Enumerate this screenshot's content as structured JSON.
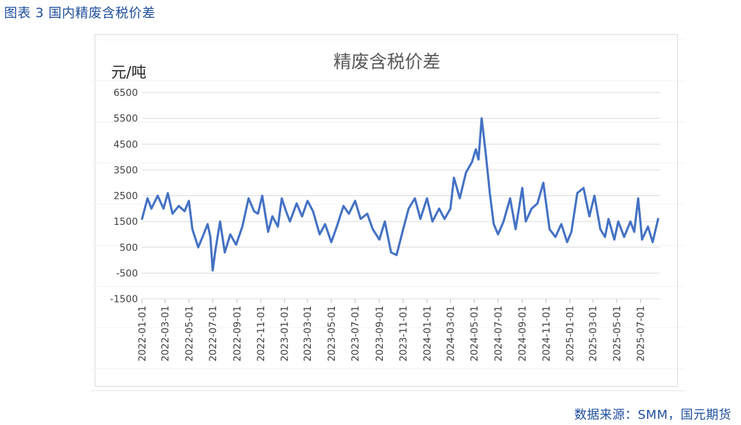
{
  "caption": "图表 3 国内精废含税价差",
  "source": "数据来源：SMM，国元期货",
  "chart_data": {
    "type": "line",
    "title": "精废含税价差",
    "ylabel": "元/吨",
    "xlabel": "",
    "ylim": [
      -1500,
      6500
    ],
    "yticks": [
      6500,
      5500,
      4500,
      3500,
      2500,
      1500,
      500,
      -500,
      -1500
    ],
    "ytick_labels": [
      "6500",
      "5500",
      "4500",
      "3500",
      "2500",
      "1500",
      "500",
      "-500",
      "-1500"
    ],
    "xlim": [
      "2022-01-01",
      "2025-08-20"
    ],
    "xtick_labels": [
      "2022-01-01",
      "2022-03-01",
      "2022-05-01",
      "2022-07-01",
      "2022-09-01",
      "2022-11-01",
      "2023-01-01",
      "2023-03-01",
      "2023-05-01",
      "2023-07-01",
      "2023-09-01",
      "2023-11-01",
      "2024-01-01",
      "2024-03-01",
      "2024-05-01",
      "2024-07-01",
      "2024-09-01",
      "2024-11-01",
      "2025-01-01",
      "2025-03-01",
      "2025-05-01",
      "2025-07-01"
    ],
    "grid": true,
    "line_color": "#4472c4",
    "series": [
      {
        "name": "",
        "x": [
          "2022-01-01",
          "2022-01-15",
          "2022-01-25",
          "2022-02-10",
          "2022-02-25",
          "2022-03-08",
          "2022-03-20",
          "2022-04-05",
          "2022-04-20",
          "2022-05-01",
          "2022-05-10",
          "2022-05-25",
          "2022-06-05",
          "2022-06-18",
          "2022-06-25",
          "2022-07-01",
          "2022-07-08",
          "2022-07-20",
          "2022-08-01",
          "2022-08-15",
          "2022-08-30",
          "2022-09-15",
          "2022-10-01",
          "2022-10-15",
          "2022-10-25",
          "2022-11-05",
          "2022-11-20",
          "2022-12-01",
          "2022-12-15",
          "2022-12-25",
          "2023-01-05",
          "2023-01-15",
          "2023-02-01",
          "2023-02-15",
          "2023-03-01",
          "2023-03-15",
          "2023-04-01",
          "2023-04-15",
          "2023-05-01",
          "2023-05-15",
          "2023-06-01",
          "2023-06-15",
          "2023-07-01",
          "2023-07-15",
          "2023-08-01",
          "2023-08-15",
          "2023-09-01",
          "2023-09-15",
          "2023-10-01",
          "2023-10-15",
          "2023-11-01",
          "2023-11-15",
          "2023-12-01",
          "2023-12-15",
          "2024-01-01",
          "2024-01-15",
          "2024-02-01",
          "2024-02-15",
          "2024-03-01",
          "2024-03-10",
          "2024-03-25",
          "2024-04-10",
          "2024-04-25",
          "2024-05-05",
          "2024-05-12",
          "2024-05-20",
          "2024-05-30",
          "2024-06-10",
          "2024-06-20",
          "2024-07-01",
          "2024-07-15",
          "2024-08-01",
          "2024-08-15",
          "2024-09-01",
          "2024-09-10",
          "2024-09-25",
          "2024-10-10",
          "2024-10-25",
          "2024-11-10",
          "2024-11-25",
          "2024-12-10",
          "2024-12-25",
          "2025-01-05",
          "2025-01-20",
          "2025-02-05",
          "2025-02-20",
          "2025-03-05",
          "2025-03-20",
          "2025-04-01",
          "2025-04-10",
          "2025-04-25",
          "2025-05-05",
          "2025-05-20",
          "2025-06-05",
          "2025-06-15",
          "2025-06-25",
          "2025-07-05",
          "2025-07-20",
          "2025-08-01",
          "2025-08-15"
        ],
        "values": [
          1600,
          2400,
          2000,
          2500,
          2000,
          2600,
          1800,
          2100,
          1900,
          2300,
          1200,
          500,
          900,
          1400,
          900,
          -400,
          400,
          1500,
          300,
          1000,
          600,
          1300,
          2400,
          1900,
          1800,
          2500,
          1100,
          1700,
          1300,
          2400,
          1900,
          1500,
          2200,
          1700,
          2300,
          1900,
          1000,
          1400,
          700,
          1300,
          2100,
          1800,
          2300,
          1600,
          1800,
          1200,
          800,
          1500,
          300,
          200,
          1200,
          2000,
          2400,
          1600,
          2400,
          1500,
          2000,
          1600,
          2000,
          3200,
          2400,
          3400,
          3800,
          4300,
          3900,
          5500,
          4200,
          2600,
          1400,
          1000,
          1500,
          2400,
          1200,
          2800,
          1500,
          2000,
          2200,
          3000,
          1200,
          900,
          1400,
          700,
          1100,
          2600,
          2800,
          1700,
          2500,
          1200,
          900,
          1600,
          800,
          1500,
          900,
          1500,
          1100,
          2400,
          800,
          1300,
          700,
          1600
        ]
      }
    ]
  }
}
